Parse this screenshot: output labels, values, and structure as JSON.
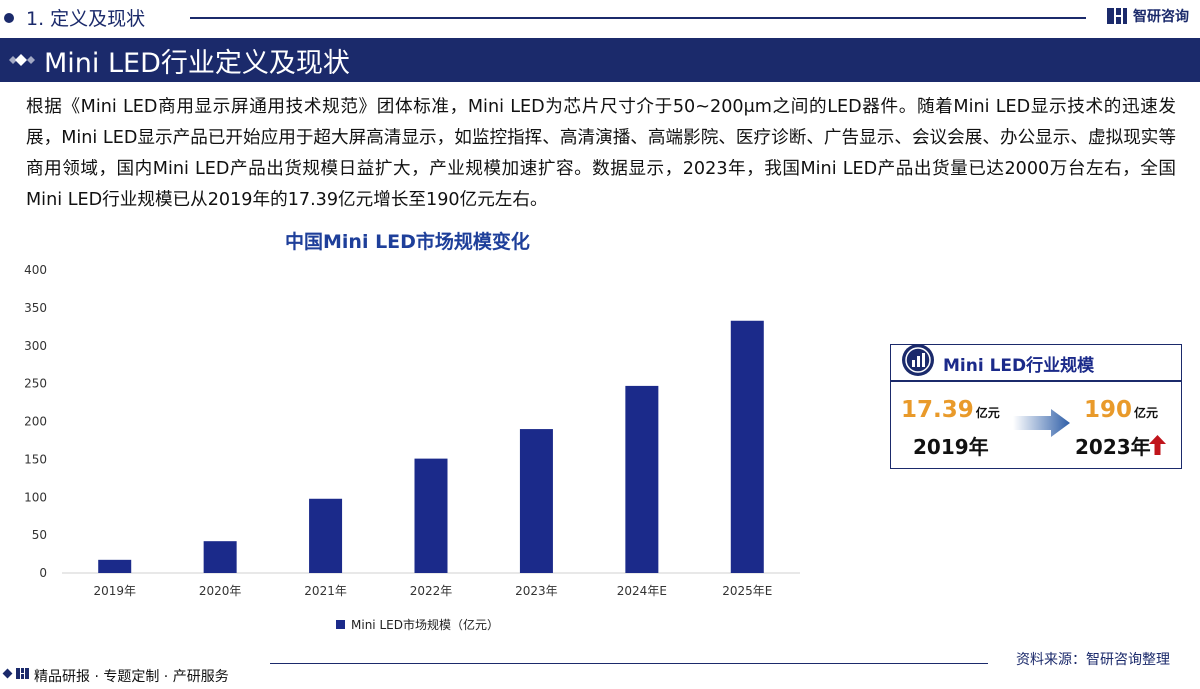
{
  "header": {
    "section": "1. 定义及现状",
    "brand": "智研咨询",
    "banner_title": "Mini LED行业定义及现状"
  },
  "intro_text": "根据《Mini LED商用显示屏通用技术规范》团体标准，Mini LED为芯片尺寸介于50~200μm之间的LED器件。随着Mini LED显示技术的迅速发展，Mini LED显示产品已开始应用于超大屏高清显示，如监控指挥、高清演播、高端影院、医疗诊断、广告显示、会议会展、办公显示、虚拟现实等商用领域，国内Mini LED产品出货规模日益扩大，产业规模加速扩容。数据显示，2023年，我国Mini LED产品出货量已达2000万台左右，全国Mini LED行业规模已从2019年的17.39亿元增长至190亿元左右。",
  "chart_data": {
    "type": "bar",
    "title": "中国Mini LED市场规模变化",
    "categories": [
      "2019年",
      "2020年",
      "2021年",
      "2022年",
      "2023年",
      "2024年E",
      "2025年E"
    ],
    "series": [
      {
        "name": "Mini LED市场规模（亿元）",
        "values": [
          17.39,
          42,
          98,
          151,
          190,
          247,
          333
        ]
      }
    ],
    "ylim": [
      0,
      400
    ],
    "yticks": [
      0,
      50,
      100,
      150,
      200,
      250,
      300,
      350,
      400
    ],
    "ytick_labels": [
      "0",
      "50",
      "100",
      "150",
      "200",
      "250",
      "300",
      "350",
      "400"
    ],
    "grid": false,
    "legend_position": "bottom",
    "bar_color": "#1b2a8a"
  },
  "card": {
    "title": "Mini LED行业规模",
    "start_value": "17.39",
    "start_unit": "亿元",
    "start_year": "2019年",
    "end_value": "190",
    "end_unit": "亿元",
    "end_year": "2023年"
  },
  "footer": {
    "source": "资料来源：智研咨询整理",
    "services": "精品研报 · 专题定制 · 产研服务"
  },
  "colors": {
    "navy": "#1b2a6b",
    "bar": "#1b2a8a",
    "accent_orange": "#e99a2a",
    "up_red": "#c0141b"
  }
}
